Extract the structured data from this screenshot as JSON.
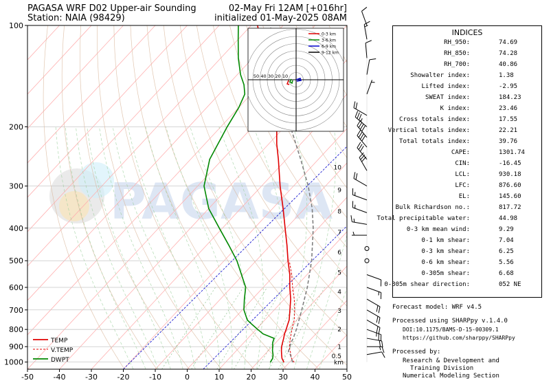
{
  "header": {
    "title_left_1": "PAGASA WRF D02 Upper-air Sounding",
    "title_left_2": "Station: NAIA (98429)",
    "title_right_1": "02-May Fri 12AM [+016hr]",
    "title_right_2": "initialized 01-May-2025 08AM"
  },
  "watermark": "PAGASA",
  "colors": {
    "temp": "#e00000",
    "vtemp": "#e00000",
    "dwpt": "#008800",
    "dry_adiabat": "#d9b89c",
    "moist_adiabat": "#9ccf9c",
    "mixing_ratio": "#2a8a2a",
    "isotherm": "#ffb0b0",
    "parcel": "#808080",
    "mixing_ref": "#0000cc",
    "hodo_0_3": "#e00000",
    "hodo_3_6": "#008800",
    "hodo_6_9": "#0000cc",
    "hodo_9_12": "#000000"
  },
  "chart_data": [
    {
      "type": "line",
      "name": "skew-t",
      "xlim": [
        -50,
        50
      ],
      "ylim_hpa": [
        1050,
        100
      ],
      "x_ticks": [
        "-50",
        "-40",
        "-30",
        "-20",
        "-10",
        "0",
        "10",
        "20",
        "30",
        "40",
        "50"
      ],
      "y_ticks": [
        "100",
        "200",
        "300",
        "400",
        "500",
        "600",
        "700",
        "800",
        "900",
        "1000"
      ],
      "y_tick_values": [
        100,
        200,
        300,
        400,
        500,
        600,
        700,
        800,
        900,
        1000
      ],
      "height_km_labels": [
        {
          "label": "10",
          "p": 263
        },
        {
          "label": "9",
          "p": 307
        },
        {
          "label": "8",
          "p": 355
        },
        {
          "label": "7",
          "p": 410
        },
        {
          "label": "6",
          "p": 470
        },
        {
          "label": "5",
          "p": 540
        },
        {
          "label": "4",
          "p": 615
        },
        {
          "label": "3",
          "p": 700
        },
        {
          "label": "2",
          "p": 795
        },
        {
          "label": "1",
          "p": 898
        },
        {
          "label": "0.5",
          "p": 955
        }
      ],
      "km_label": "km",
      "legend": [
        {
          "key": "temp",
          "label": "TEMP"
        },
        {
          "key": "vtemp",
          "label": "V.TEMP"
        },
        {
          "key": "dwpt",
          "label": "DWPT"
        }
      ],
      "series": [
        {
          "name": "TEMP",
          "points": [
            [
              1002,
              28.3
            ],
            [
              975,
              26.5
            ],
            [
              950,
              25.3
            ],
            [
              925,
              24.1
            ],
            [
              900,
              23.0
            ],
            [
              875,
              22.1
            ],
            [
              850,
              21.2
            ],
            [
              825,
              20.2
            ],
            [
              800,
              19.4
            ],
            [
              775,
              18.5
            ],
            [
              750,
              17.6
            ],
            [
              700,
              14.9
            ],
            [
              650,
              12.0
            ],
            [
              600,
              8.3
            ],
            [
              550,
              4.6
            ],
            [
              500,
              0.0
            ],
            [
              450,
              -4.8
            ],
            [
              400,
              -10.4
            ],
            [
              350,
              -16.7
            ],
            [
              300,
              -24.2
            ],
            [
              250,
              -32.5
            ],
            [
              225,
              -37.5
            ],
            [
              200,
              -42.5
            ],
            [
              175,
              -48.5
            ],
            [
              150,
              -56.0
            ],
            [
              125,
              -66.0
            ],
            [
              110,
              -73.0
            ],
            [
              100,
              -78.0
            ]
          ]
        },
        {
          "name": "V.TEMP",
          "points": [
            [
              1002,
              31.5
            ],
            [
              975,
              29.5
            ],
            [
              950,
              28.2
            ],
            [
              925,
              26.8
            ],
            [
              900,
              25.4
            ],
            [
              850,
              23.3
            ],
            [
              800,
              21.2
            ],
            [
              750,
              19.2
            ],
            [
              700,
              16.4
            ],
            [
              650,
              13.1
            ],
            [
              600,
              9.2
            ],
            [
              550,
              5.2
            ],
            [
              500,
              0.4
            ]
          ]
        },
        {
          "name": "DWPT",
          "points": [
            [
              1002,
              24.0
            ],
            [
              975,
              23.6
            ],
            [
              950,
              22.6
            ],
            [
              925,
              21.3
            ],
            [
              900,
              20.2
            ],
            [
              875,
              19.0
            ],
            [
              850,
              18.2
            ],
            [
              825,
              13.5
            ],
            [
              800,
              10.5
            ],
            [
              775,
              7.5
            ],
            [
              750,
              4.5
            ],
            [
              700,
              0.5
            ],
            [
              650,
              -2.5
            ],
            [
              600,
              -5.5
            ],
            [
              550,
              -10.5
            ],
            [
              500,
              -16.0
            ],
            [
              450,
              -23.0
            ],
            [
              400,
              -31.0
            ],
            [
              350,
              -40.0
            ],
            [
              300,
              -48.0
            ],
            [
              250,
              -54.0
            ],
            [
              200,
              -58.0
            ],
            [
              175,
              -60.0
            ],
            [
              160,
              -62.0
            ],
            [
              150,
              -65.0
            ],
            [
              140,
              -69.0
            ],
            [
              125,
              -74.5
            ],
            [
              110,
              -80.0
            ],
            [
              100,
              -84.0
            ]
          ]
        },
        {
          "name": "Parcel",
          "points": [
            [
              1002,
              31.0
            ],
            [
              950,
              28.0
            ],
            [
              930,
              26.5
            ],
            [
              900,
              25.6
            ],
            [
              876,
              24.8
            ],
            [
              850,
              24.2
            ],
            [
              800,
              22.6
            ],
            [
              700,
              18.6
            ],
            [
              600,
              13.8
            ],
            [
              500,
              7.4
            ],
            [
              400,
              -1.6
            ],
            [
              350,
              -7.6
            ],
            [
              300,
              -15.4
            ],
            [
              250,
              -25.5
            ],
            [
              200,
              -38.2
            ],
            [
              175,
              -45.4
            ],
            [
              150,
              -54.0
            ],
            [
              145.6,
              -56.0
            ],
            [
              125,
              -63.0
            ],
            [
              100,
              -74.0
            ]
          ]
        }
      ]
    },
    {
      "type": "line",
      "name": "hodograph",
      "ring_labels": [
        "50",
        "40",
        "30",
        "20",
        "10"
      ],
      "legend": [
        {
          "key": "hodo_0_3",
          "label": "0-3 km"
        },
        {
          "key": "hodo_3_6",
          "label": "3-6 km"
        },
        {
          "key": "hodo_6_9",
          "label": "6-9 km"
        },
        {
          "key": "hodo_9_12",
          "label": "9-12 km"
        }
      ]
    }
  ],
  "wind_barbs": [
    {
      "p": 100,
      "dir": 340,
      "spd": 10
    },
    {
      "p": 110,
      "dir": 350,
      "spd": 15
    },
    {
      "p": 125,
      "dir": 355,
      "spd": 10
    },
    {
      "p": 140,
      "dir": 10,
      "spd": 10
    },
    {
      "p": 160,
      "dir": 20,
      "spd": 5
    },
    {
      "p": 185,
      "dir": 300,
      "spd": 20
    },
    {
      "p": 200,
      "dir": 310,
      "spd": 35
    },
    {
      "p": 215,
      "dir": 320,
      "spd": 40
    },
    {
      "p": 230,
      "dir": 320,
      "spd": 40
    },
    {
      "p": 250,
      "dir": 320,
      "spd": 30
    },
    {
      "p": 270,
      "dir": 330,
      "spd": 30
    },
    {
      "p": 300,
      "dir": 300,
      "spd": 20
    },
    {
      "p": 330,
      "dir": 290,
      "spd": 15
    },
    {
      "p": 360,
      "dir": 290,
      "spd": 15
    },
    {
      "p": 390,
      "dir": 280,
      "spd": 15
    },
    {
      "p": 420,
      "dir": 270,
      "spd": 5
    },
    {
      "p": 460,
      "dir": 0,
      "spd": 0
    },
    {
      "p": 500,
      "dir": 0,
      "spd": 0
    },
    {
      "p": 550,
      "dir": 110,
      "spd": 10
    },
    {
      "p": 600,
      "dir": 110,
      "spd": 15
    },
    {
      "p": 650,
      "dir": 120,
      "spd": 20
    },
    {
      "p": 700,
      "dir": 120,
      "spd": 20
    },
    {
      "p": 750,
      "dir": 120,
      "spd": 20
    },
    {
      "p": 800,
      "dir": 110,
      "spd": 25
    },
    {
      "p": 850,
      "dir": 100,
      "spd": 20
    },
    {
      "p": 900,
      "dir": 90,
      "spd": 15
    },
    {
      "p": 950,
      "dir": 80,
      "spd": 10
    }
  ],
  "indices": {
    "heading": "INDICES",
    "rows": [
      {
        "label": "RH_950:",
        "value": "74.69"
      },
      {
        "label": "RH_850:",
        "value": "74.28"
      },
      {
        "label": "RH_700:",
        "value": "40.86"
      },
      {
        "label": "Showalter index:",
        "value": "1.38"
      },
      {
        "label": "Lifted index:",
        "value": "-2.95"
      },
      {
        "label": "SWEAT index:",
        "value": "184.23"
      },
      {
        "label": "K index:",
        "value": "23.46"
      },
      {
        "label": "Cross totals index:",
        "value": "17.55"
      },
      {
        "label": "Vertical totals index:",
        "value": "22.21"
      },
      {
        "label": "Total totals index:",
        "value": "39.76"
      },
      {
        "label": "CAPE:",
        "value": "1301.74"
      },
      {
        "label": "CIN:",
        "value": "-16.45"
      },
      {
        "label": "LCL:",
        "value": "930.18"
      },
      {
        "label": "LFC:",
        "value": "876.60"
      },
      {
        "label": "EL:",
        "value": "145.60"
      },
      {
        "label": "Bulk Richardson no.:",
        "value": "817.72"
      },
      {
        "label": "Total precipitable water:",
        "value": "44.98"
      },
      {
        "label": "0-3 km mean wind:",
        "value": "9.29"
      },
      {
        "label": "0-1 km shear:",
        "value": "7.04"
      },
      {
        "label": "0-3 km shear:",
        "value": "6.25"
      },
      {
        "label": "0-6 km shear:",
        "value": "5.56"
      },
      {
        "label": "0-305m shear:",
        "value": "6.68"
      },
      {
        "label": "0-305m shear direction:",
        "value": "052 NE"
      }
    ]
  },
  "footer": {
    "forecast_model": "Forecast model: WRF v4.5",
    "processed_using": "Processed using SHARPpy v.1.4.0",
    "doi": "DOI:10.1175/BAMS-D-15-00309.1",
    "url": "https://github.com/sharppy/SHARPpy",
    "processed_by": "Processed by:",
    "org_1": "Research & Development and",
    "org_2": "Training Division",
    "org_3": "Numerical Modeling Section"
  }
}
